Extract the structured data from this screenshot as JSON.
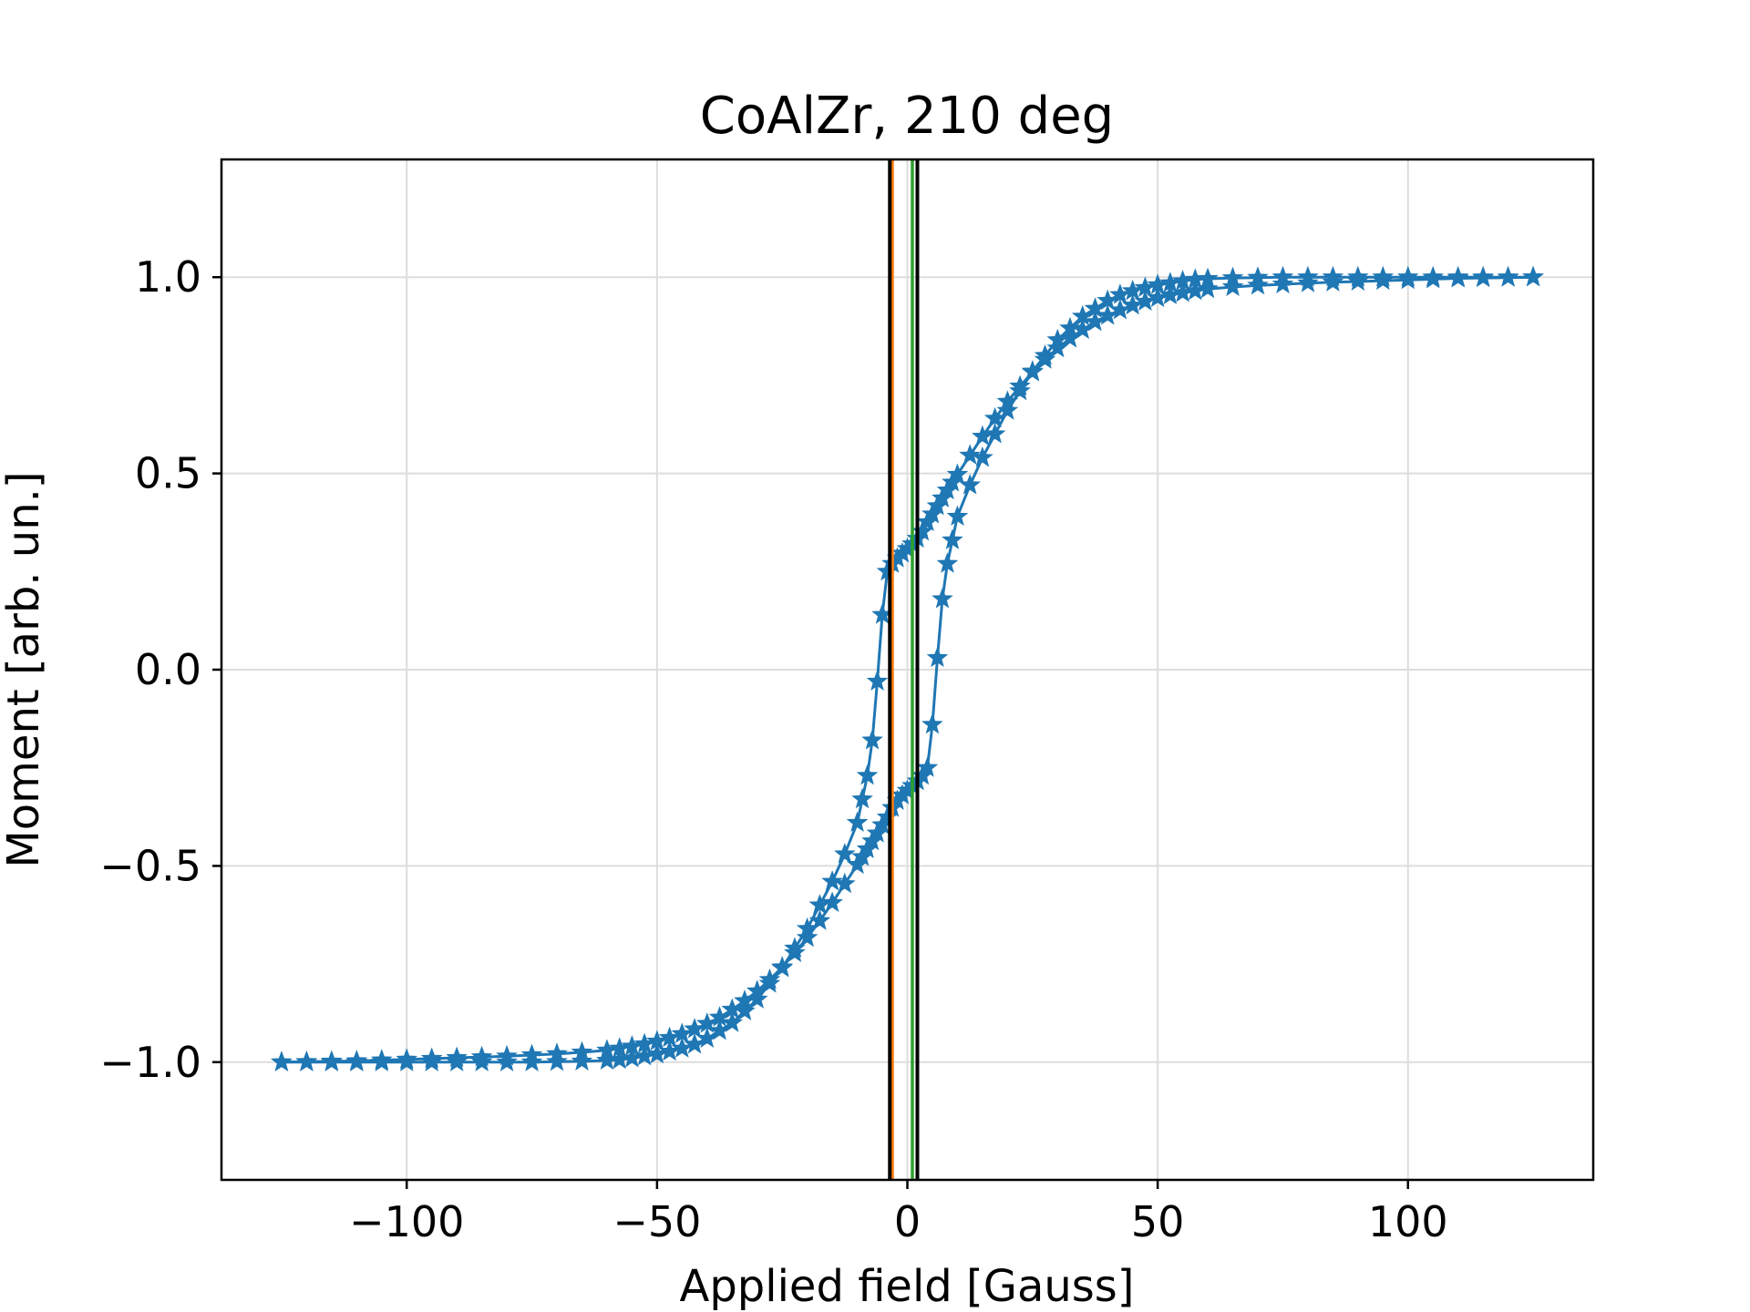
{
  "chart_data": {
    "type": "scatter",
    "title": "CoAlZr, 210 deg",
    "xlabel": "Applied field [Gauss]",
    "ylabel": "Moment [arb. un.]",
    "xlim": [
      -137,
      137
    ],
    "ylim": [
      -1.3,
      1.3
    ],
    "xticks": [
      -100,
      -50,
      0,
      50,
      100
    ],
    "xtick_labels": [
      "−100",
      "−50",
      "0",
      "50",
      "100"
    ],
    "yticks": [
      1.0,
      0.5,
      0.0,
      -0.5,
      -1.0
    ],
    "ytick_labels": [
      "1.0",
      "0.5",
      "0.0",
      "−0.5",
      "−1.0"
    ],
    "grid": true,
    "marker": "star",
    "series": [
      {
        "color": "#1f77b4",
        "branches": [
          {
            "x": [
              -125,
              -120,
              -115,
              -110,
              -105,
              -100,
              -95,
              -90,
              -85,
              -80,
              -75,
              -70,
              -65,
              -60,
              -57.5,
              -55,
              -52.5,
              -50,
              -47.5,
              -45,
              -42.5,
              -40,
              -37.5,
              -35,
              -32.5,
              -30,
              -27.5,
              -25,
              -22.5,
              -20,
              -17.5,
              -15,
              -12.5,
              -10,
              -9,
              -8,
              -7,
              -6,
              -5,
              -4,
              -3,
              -2,
              -1,
              0,
              1,
              2,
              3,
              4,
              5,
              6,
              7,
              8,
              9,
              10,
              12.5,
              15,
              17.5,
              20,
              22.5,
              25,
              27.5,
              30,
              32.5,
              35,
              37.5,
              40,
              42.5,
              45,
              47.5,
              50,
              52.5,
              55,
              57.5,
              60,
              65,
              70,
              75,
              80,
              85,
              90,
              95,
              100,
              105,
              110,
              115,
              120,
              125
            ],
            "y": [
              -1.0,
              -0.999,
              -0.998,
              -0.997,
              -0.995,
              -0.993,
              -0.991,
              -0.989,
              -0.987,
              -0.985,
              -0.982,
              -0.979,
              -0.975,
              -0.97,
              -0.965,
              -0.96,
              -0.954,
              -0.947,
              -0.938,
              -0.928,
              -0.916,
              -0.902,
              -0.886,
              -0.866,
              -0.844,
              -0.819,
              -0.79,
              -0.758,
              -0.722,
              -0.683,
              -0.64,
              -0.594,
              -0.546,
              -0.497,
              -0.477,
              -0.457,
              -0.437,
              -0.417,
              -0.396,
              -0.376,
              -0.352,
              -0.334,
              -0.32,
              -0.308,
              -0.296,
              -0.284,
              -0.27,
              -0.25,
              -0.14,
              0.03,
              0.18,
              0.27,
              0.33,
              0.39,
              0.47,
              0.54,
              0.6,
              0.66,
              0.71,
              0.76,
              0.8,
              0.84,
              0.87,
              0.9,
              0.92,
              0.94,
              0.955,
              0.965,
              0.973,
              0.98,
              0.985,
              0.99,
              0.994,
              0.996,
              0.998,
              0.999,
              1.0,
              1.0,
              1.0,
              1.0,
              1.0,
              1.0,
              1.0,
              1.0,
              1.0,
              1.0,
              1.0
            ]
          },
          {
            "x": [
              125,
              120,
              115,
              110,
              105,
              100,
              95,
              90,
              85,
              80,
              75,
              70,
              65,
              60,
              57.5,
              55,
              52.5,
              50,
              47.5,
              45,
              42.5,
              40,
              37.5,
              35,
              32.5,
              30,
              27.5,
              25,
              22.5,
              20,
              17.5,
              15,
              12.5,
              10,
              9,
              8,
              7,
              6,
              5,
              4,
              3,
              2,
              1,
              0,
              -1,
              -2,
              -3,
              -4,
              -5,
              -6,
              -7,
              -8,
              -9,
              -10,
              -12.5,
              -15,
              -17.5,
              -20,
              -22.5,
              -25,
              -27.5,
              -30,
              -32.5,
              -35,
              -37.5,
              -40,
              -42.5,
              -45,
              -47.5,
              -50,
              -52.5,
              -55,
              -57.5,
              -60,
              -65,
              -70,
              -75,
              -80,
              -85,
              -90,
              -95,
              -100,
              -105,
              -110,
              -115,
              -120,
              -125
            ],
            "y": [
              1.0,
              0.999,
              0.998,
              0.997,
              0.995,
              0.993,
              0.991,
              0.989,
              0.987,
              0.985,
              0.982,
              0.979,
              0.975,
              0.97,
              0.965,
              0.96,
              0.954,
              0.947,
              0.938,
              0.928,
              0.916,
              0.902,
              0.886,
              0.866,
              0.844,
              0.819,
              0.79,
              0.758,
              0.722,
              0.683,
              0.64,
              0.594,
              0.546,
              0.497,
              0.477,
              0.457,
              0.437,
              0.417,
              0.396,
              0.376,
              0.352,
              0.334,
              0.32,
              0.308,
              0.296,
              0.284,
              0.27,
              0.25,
              0.14,
              -0.03,
              -0.18,
              -0.27,
              -0.33,
              -0.39,
              -0.47,
              -0.54,
              -0.6,
              -0.66,
              -0.71,
              -0.76,
              -0.8,
              -0.84,
              -0.87,
              -0.9,
              -0.92,
              -0.94,
              -0.955,
              -0.965,
              -0.973,
              -0.98,
              -0.985,
              -0.99,
              -0.994,
              -0.996,
              -0.998,
              -0.999,
              -1.0,
              -1.0,
              -1.0,
              -1.0,
              -1.0,
              -1.0,
              -1.0,
              -1.0,
              -1.0,
              -1.0,
              -1.0
            ]
          }
        ]
      }
    ],
    "vertical_lines": [
      {
        "x": -3.0,
        "color": "#ff7f0e"
      },
      {
        "x": 1.0,
        "color": "#2ca02c"
      },
      {
        "x": -3.5,
        "color": "#000000"
      },
      {
        "x": 2.0,
        "color": "#000000"
      }
    ]
  }
}
